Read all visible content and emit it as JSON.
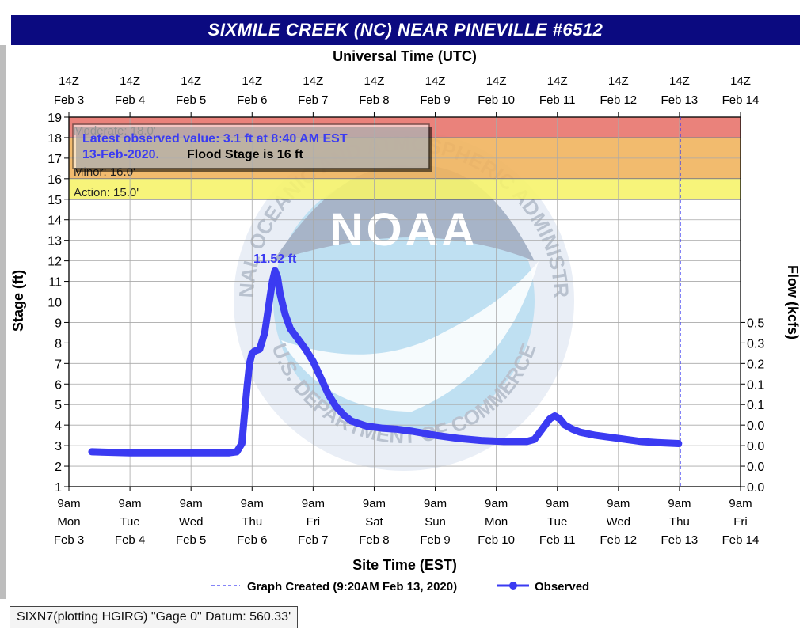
{
  "title": "SIXMILE CREEK (NC) NEAR PINEVILLE #6512",
  "footer_note": "SIXN7(plotting HGIRG) \"Gage 0\" Datum: 560.33'",
  "chart_data": {
    "type": "line",
    "title": "SIXMILE CREEK (NC) NEAR PINEVILLE #6512",
    "top_axis_label": "Universal Time (UTC)",
    "xlabel": "Site Time (EST)",
    "ylabel": "Stage (ft)",
    "y2label": "Flow (kcfs)",
    "ylim": [
      1,
      19
    ],
    "y_ticks": [
      1,
      2,
      3,
      4,
      5,
      6,
      7,
      8,
      9,
      10,
      11,
      12,
      13,
      14,
      15,
      16,
      17,
      18,
      19
    ],
    "y2_ticks": [
      {
        "stage": 1,
        "label": "0.0"
      },
      {
        "stage": 2,
        "label": "0.0"
      },
      {
        "stage": 3,
        "label": "0.0"
      },
      {
        "stage": 4,
        "label": "0.0"
      },
      {
        "stage": 5,
        "label": "0.1"
      },
      {
        "stage": 6,
        "label": "0.1"
      },
      {
        "stage": 7,
        "label": "0.2"
      },
      {
        "stage": 8,
        "label": "0.3"
      },
      {
        "stage": 9,
        "label": "0.5"
      }
    ],
    "x_range_days": [
      "2020-02-03T09:00",
      "2020-02-14T09:00"
    ],
    "x_ticks": [
      {
        "time": "9am",
        "day": "Mon",
        "date": "Feb 3",
        "utc_time": "14Z",
        "utc_date": "Feb  3"
      },
      {
        "time": "9am",
        "day": "Tue",
        "date": "Feb 4",
        "utc_time": "14Z",
        "utc_date": "Feb  4"
      },
      {
        "time": "9am",
        "day": "Wed",
        "date": "Feb 5",
        "utc_time": "14Z",
        "utc_date": "Feb  5"
      },
      {
        "time": "9am",
        "day": "Thu",
        "date": "Feb 6",
        "utc_time": "14Z",
        "utc_date": "Feb  6"
      },
      {
        "time": "9am",
        "day": "Fri",
        "date": "Feb 7",
        "utc_time": "14Z",
        "utc_date": "Feb  7"
      },
      {
        "time": "9am",
        "day": "Sat",
        "date": "Feb 8",
        "utc_time": "14Z",
        "utc_date": "Feb  8"
      },
      {
        "time": "9am",
        "day": "Sun",
        "date": "Feb 9",
        "utc_time": "14Z",
        "utc_date": "Feb  9"
      },
      {
        "time": "9am",
        "day": "Mon",
        "date": "Feb 10",
        "utc_time": "14Z",
        "utc_date": "Feb 10"
      },
      {
        "time": "9am",
        "day": "Tue",
        "date": "Feb 11",
        "utc_time": "14Z",
        "utc_date": "Feb 11"
      },
      {
        "time": "9am",
        "day": "Wed",
        "date": "Feb 12",
        "utc_time": "14Z",
        "utc_date": "Feb 12"
      },
      {
        "time": "9am",
        "day": "Thu",
        "date": "Feb 13",
        "utc_time": "14Z",
        "utc_date": "Feb 13"
      },
      {
        "time": "9am",
        "day": "Fri",
        "date": "Feb 14",
        "utc_time": "14Z",
        "utc_date": "Feb 14"
      }
    ],
    "flood_categories": [
      {
        "label": "Moderate: 18.0'",
        "from": 18,
        "to": 19,
        "color": "#e8746d"
      },
      {
        "label": "Minor: 16.0'",
        "from": 16,
        "to": 18,
        "color": "#f1b45e"
      },
      {
        "label": "Action: 15.0'",
        "from": 15,
        "to": 16,
        "color": "#f6f36b"
      }
    ],
    "info_box": {
      "latest_line1": "Latest observed value: 3.1 ft at 8:40 AM EST",
      "latest_line2": "13-Feb-2020.",
      "flood_stage": "Flood Stage is 16 ft"
    },
    "peak_label": "11.52 ft",
    "graph_created_x": "2020-02-13T09:20",
    "legend": [
      {
        "style": "dashed",
        "label": "Graph Created (9:20AM Feb 13, 2020)"
      },
      {
        "style": "line-dot",
        "label": "Observed"
      }
    ],
    "watermark": {
      "center_text": "NOAA",
      "ring_top": "NATIONAL OCEANIC AND ATMOSPHERIC ADMINISTRATION",
      "ring_bottom": "U.S. DEPARTMENT OF COMMERCE"
    },
    "series": [
      {
        "name": "Observed",
        "color": "#3b3bf2",
        "x": [
          "2020-02-03T18:00",
          "2020-02-04T09:00",
          "2020-02-05T09:00",
          "2020-02-05T18:00",
          "2020-02-06T00:00",
          "2020-02-06T03:00",
          "2020-02-06T05:00",
          "2020-02-06T06:00",
          "2020-02-06T07:00",
          "2020-02-06T08:00",
          "2020-02-06T09:00",
          "2020-02-06T10:00",
          "2020-02-06T12:00",
          "2020-02-06T14:00",
          "2020-02-06T16:00",
          "2020-02-06T17:00",
          "2020-02-06T18:00",
          "2020-02-06T19:00",
          "2020-02-06T20:00",
          "2020-02-06T22:00",
          "2020-02-07T00:00",
          "2020-02-07T03:00",
          "2020-02-07T06:00",
          "2020-02-07T09:00",
          "2020-02-07T12:00",
          "2020-02-07T15:00",
          "2020-02-07T18:00",
          "2020-02-07T21:00",
          "2020-02-08T00:00",
          "2020-02-08T06:00",
          "2020-02-08T12:00",
          "2020-02-08T18:00",
          "2020-02-09T00:00",
          "2020-02-09T09:00",
          "2020-02-09T18:00",
          "2020-02-10T03:00",
          "2020-02-10T12:00",
          "2020-02-10T21:00",
          "2020-02-11T00:00",
          "2020-02-11T03:00",
          "2020-02-11T06:00",
          "2020-02-11T08:00",
          "2020-02-11T10:00",
          "2020-02-11T12:00",
          "2020-02-11T15:00",
          "2020-02-11T18:00",
          "2020-02-12T00:00",
          "2020-02-12T06:00",
          "2020-02-12T12:00",
          "2020-02-12T18:00",
          "2020-02-13T00:00",
          "2020-02-13T08:40"
        ],
        "values": [
          2.7,
          2.65,
          2.65,
          2.65,
          2.65,
          2.7,
          3.1,
          4.5,
          5.8,
          7.0,
          7.5,
          7.6,
          7.7,
          8.5,
          10.2,
          11.0,
          11.52,
          11.2,
          10.4,
          9.4,
          8.7,
          8.2,
          7.7,
          7.1,
          6.3,
          5.5,
          4.9,
          4.5,
          4.2,
          3.95,
          3.85,
          3.8,
          3.7,
          3.5,
          3.35,
          3.25,
          3.2,
          3.2,
          3.3,
          3.8,
          4.3,
          4.45,
          4.3,
          4.0,
          3.8,
          3.65,
          3.5,
          3.4,
          3.3,
          3.2,
          3.15,
          3.1
        ]
      }
    ]
  }
}
